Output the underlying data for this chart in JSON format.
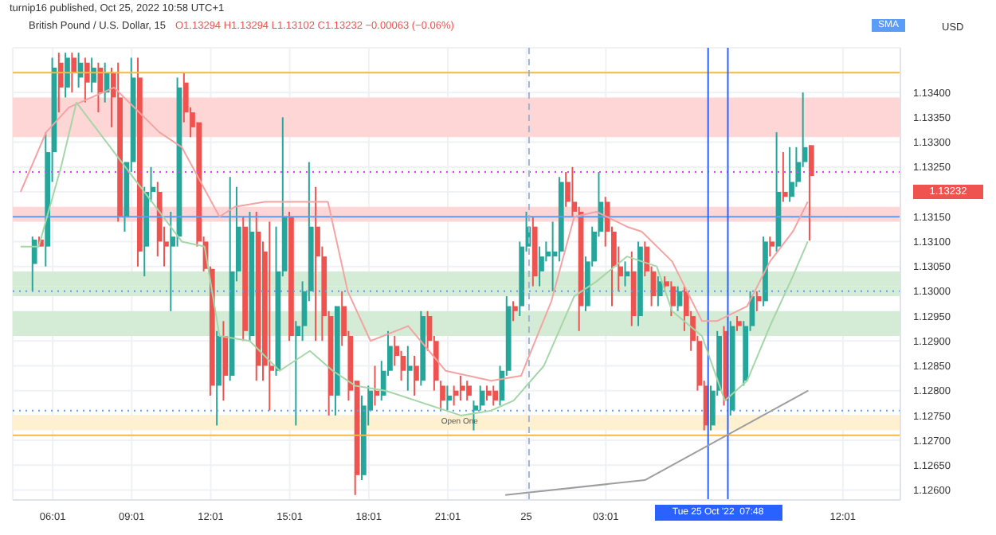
{
  "chart_data": {
    "type": "candlestick",
    "title": "British Pound / U.S. Dollar, 15",
    "subtitle": "O1.13294 H1.13294 L1.13102 C1.13232 −0.00063 (−0.06%)",
    "ylabel": "USD",
    "annotations": [
      "turnip16 published, Oct 25, 2022 10:58 UTC+1",
      "Tue 25 Oct '22  07:48",
      "Open One",
      "SMA",
      "1.13232"
    ],
    "x": [
      "2022-10-24T05:15",
      "2022-10-24T05:30",
      "2022-10-24T05:45",
      "2022-10-24T06:00",
      "2022-10-24T06:15",
      "2022-10-24T06:30",
      "2022-10-24T06:45",
      "2022-10-24T07:00",
      "2022-10-24T07:15",
      "2022-10-24T07:30",
      "2022-10-24T07:45",
      "2022-10-24T08:00",
      "2022-10-24T08:15",
      "2022-10-24T08:30",
      "2022-10-24T08:45",
      "2022-10-24T09:00",
      "2022-10-24T09:15",
      "2022-10-24T09:30",
      "2022-10-24T09:45",
      "2022-10-24T10:00",
      "2022-10-24T10:15",
      "2022-10-24T10:30",
      "2022-10-24T10:45",
      "2022-10-24T11:00",
      "2022-10-24T11:15",
      "2022-10-24T11:30",
      "2022-10-24T11:45",
      "2022-10-24T12:00",
      "2022-10-24T12:15",
      "2022-10-24T12:30",
      "2022-10-24T12:45",
      "2022-10-24T13:00",
      "2022-10-24T13:15",
      "2022-10-24T13:30",
      "2022-10-24T13:45",
      "2022-10-24T14:00",
      "2022-10-24T14:15",
      "2022-10-24T14:30",
      "2022-10-24T14:45",
      "2022-10-24T15:00",
      "2022-10-24T15:15",
      "2022-10-24T15:30",
      "2022-10-24T15:45",
      "2022-10-24T16:00",
      "2022-10-24T16:15",
      "2022-10-24T16:30",
      "2022-10-24T16:45",
      "2022-10-24T17:00",
      "2022-10-24T17:15",
      "2022-10-24T17:30",
      "2022-10-24T17:45",
      "2022-10-24T18:00",
      "2022-10-24T18:15",
      "2022-10-24T18:30",
      "2022-10-24T18:45",
      "2022-10-24T19:00",
      "2022-10-24T19:15",
      "2022-10-24T19:30",
      "2022-10-24T19:45",
      "2022-10-24T20:00",
      "2022-10-24T20:15",
      "2022-10-24T20:30",
      "2022-10-24T20:45",
      "2022-10-24T21:00",
      "2022-10-24T21:15",
      "2022-10-24T21:30",
      "2022-10-24T21:45",
      "2022-10-24T22:00",
      "2022-10-24T22:15",
      "2022-10-24T22:30",
      "2022-10-24T22:45",
      "2022-10-24T23:00",
      "2022-10-24T23:15",
      "2022-10-24T23:30",
      "2022-10-24T23:45",
      "2022-10-25T00:00",
      "2022-10-25T00:15",
      "2022-10-25T00:30",
      "2022-10-25T00:45",
      "2022-10-25T01:00",
      "2022-10-25T01:15",
      "2022-10-25T01:30",
      "2022-10-25T01:45",
      "2022-10-25T02:00",
      "2022-10-25T02:15",
      "2022-10-25T02:30",
      "2022-10-25T02:45",
      "2022-10-25T03:00",
      "2022-10-25T03:15",
      "2022-10-25T03:30",
      "2022-10-25T03:45",
      "2022-10-25T04:00",
      "2022-10-25T04:15",
      "2022-10-25T04:30",
      "2022-10-25T04:45",
      "2022-10-25T05:00",
      "2022-10-25T05:15",
      "2022-10-25T05:30",
      "2022-10-25T05:45",
      "2022-10-25T06:00",
      "2022-10-25T06:15",
      "2022-10-25T06:30",
      "2022-10-25T06:45",
      "2022-10-25T07:00",
      "2022-10-25T07:15",
      "2022-10-25T07:30",
      "2022-10-25T07:45",
      "2022-10-25T08:00",
      "2022-10-25T08:15",
      "2022-10-25T08:30",
      "2022-10-25T08:45",
      "2022-10-25T09:00",
      "2022-10-25T09:15",
      "2022-10-25T09:30",
      "2022-10-25T09:45",
      "2022-10-25T10:00",
      "2022-10-25T10:15",
      "2022-10-25T10:30",
      "2022-10-25T10:45"
    ],
    "ohlc": [
      [
        1.13055,
        1.1311,
        1.13,
        1.13104
      ],
      [
        1.13104,
        1.1311,
        1.1309,
        1.1309
      ],
      [
        1.1309,
        1.1332,
        1.1305,
        1.1328
      ],
      [
        1.1328,
        1.1347,
        1.1322,
        1.1345
      ],
      [
        1.1346,
        1.1348,
        1.1336,
        1.1341
      ],
      [
        1.1341,
        1.1348,
        1.1339,
        1.1347
      ],
      [
        1.1347,
        1.1348,
        1.134,
        1.1344
      ],
      [
        1.1343,
        1.1348,
        1.1341,
        1.1346
      ],
      [
        1.1346,
        1.1347,
        1.1338,
        1.1342
      ],
      [
        1.1342,
        1.1347,
        1.134,
        1.1345
      ],
      [
        1.1345,
        1.1346,
        1.1336,
        1.134
      ],
      [
        1.134,
        1.1346,
        1.1338,
        1.1344
      ],
      [
        1.1344,
        1.1345,
        1.1333,
        1.1339
      ],
      [
        1.1339,
        1.1346,
        1.1314,
        1.1315
      ],
      [
        1.1315,
        1.1326,
        1.1312,
        1.1326
      ],
      [
        1.1326,
        1.1347,
        1.1324,
        1.1343
      ],
      [
        1.1343,
        1.1347,
        1.1305,
        1.1308
      ],
      [
        1.1309,
        1.1321,
        1.1303,
        1.132
      ],
      [
        1.132,
        1.1325,
        1.1318,
        1.1321
      ],
      [
        1.132,
        1.1322,
        1.1307,
        1.131
      ],
      [
        1.131,
        1.1313,
        1.1305,
        1.1309
      ],
      [
        1.1309,
        1.1316,
        1.1296,
        1.1311
      ],
      [
        1.1311,
        1.1343,
        1.1309,
        1.1341
      ],
      [
        1.1342,
        1.1344,
        1.1334,
        1.1336
      ],
      [
        1.1336,
        1.1337,
        1.1331,
        1.1333
      ],
      [
        1.1334,
        1.1334,
        1.1309,
        1.131
      ],
      [
        1.131,
        1.1311,
        1.1304,
        1.13045
      ],
      [
        1.13045,
        1.1305,
        1.1279,
        1.1281
      ],
      [
        1.1281,
        1.1292,
        1.1273,
        1.1291
      ],
      [
        1.1291,
        1.1294,
        1.1278,
        1.1283
      ],
      [
        1.1283,
        1.1323,
        1.1282,
        1.1304
      ],
      [
        1.1304,
        1.1321,
        1.1302,
        1.1313
      ],
      [
        1.1313,
        1.1315,
        1.129,
        1.1292
      ],
      [
        1.1291,
        1.1316,
        1.129,
        1.1312
      ],
      [
        1.1312,
        1.1316,
        1.1282,
        1.1285
      ],
      [
        1.1308,
        1.131,
        1.1282,
        1.1285
      ],
      [
        1.1285,
        1.1314,
        1.1276,
        1.1284
      ],
      [
        1.1284,
        1.1313,
        1.1283,
        1.1304
      ],
      [
        1.1304,
        1.1335,
        1.1303,
        1.1315
      ],
      [
        1.1315,
        1.1316,
        1.129,
        1.1291
      ],
      [
        1.1291,
        1.1294,
        1.1273,
        1.1293
      ],
      [
        1.1293,
        1.1302,
        1.129,
        1.13
      ],
      [
        1.13,
        1.1326,
        1.1298,
        1.1313
      ],
      [
        1.1313,
        1.1321,
        1.129,
        1.1307
      ],
      [
        1.1307,
        1.1309,
        1.129,
        1.1295
      ],
      [
        1.1295,
        1.1296,
        1.1275,
        1.1279
      ],
      [
        1.1279,
        1.1297,
        1.1275,
        1.1297
      ],
      [
        1.1297,
        1.13,
        1.1289,
        1.1291
      ],
      [
        1.1291,
        1.1292,
        1.1278,
        1.128
      ],
      [
        1.1282,
        1.1282,
        1.1259,
        1.1263
      ],
      [
        1.1263,
        1.1279,
        1.1262,
        1.1277
      ],
      [
        1.1276,
        1.1281,
        1.1273,
        1.128
      ],
      [
        1.128,
        1.1285,
        1.1277,
        1.1279
      ],
      [
        1.1279,
        1.1286,
        1.1278,
        1.1284
      ],
      [
        1.1284,
        1.1292,
        1.1283,
        1.1289
      ],
      [
        1.1289,
        1.1291,
        1.1285,
        1.1287
      ],
      [
        1.1287,
        1.1288,
        1.1282,
        1.1284
      ],
      [
        1.1284,
        1.1289,
        1.128,
        1.1285
      ],
      [
        1.1285,
        1.1287,
        1.1279,
        1.1282
      ],
      [
        1.1282,
        1.1296,
        1.1281,
        1.1295
      ],
      [
        1.1295,
        1.1296,
        1.1288,
        1.129
      ],
      [
        1.129,
        1.1291,
        1.128,
        1.1282
      ],
      [
        1.1281,
        1.1282,
        1.1276,
        1.1278
      ],
      [
        1.1278,
        1.1281,
        1.1276,
        1.1279
      ],
      [
        1.128,
        1.1281,
        1.1277,
        1.1279
      ],
      [
        1.1281,
        1.1283,
        1.1278,
        1.128
      ],
      [
        1.1281,
        1.1282,
        1.1278,
        1.1279
      ],
      [
        1.1276,
        1.1278,
        1.1272,
        1.1277
      ],
      [
        1.1277,
        1.1281,
        1.1276,
        1.128
      ],
      [
        1.128,
        1.1281,
        1.1278,
        1.1279
      ],
      [
        1.128,
        1.1281,
        1.1277,
        1.1278
      ],
      [
        1.1278,
        1.1285,
        1.1277,
        1.1284
      ],
      [
        1.1284,
        1.1299,
        1.1283,
        1.1297
      ],
      [
        1.1297,
        1.1298,
        1.1294,
        1.1296
      ],
      [
        1.1297,
        1.131,
        1.1295,
        1.1309
      ],
      [
        1.1309,
        1.1316,
        1.1308,
        1.1313
      ],
      [
        1.1313,
        1.1315,
        1.1301,
        1.1303
      ],
      [
        1.1304,
        1.1309,
        1.1301,
        1.1307
      ],
      [
        1.1307,
        1.131,
        1.1306,
        1.1308
      ],
      [
        1.1307,
        1.1314,
        1.13,
        1.1308
      ],
      [
        1.1308,
        1.1323,
        1.1306,
        1.1322
      ],
      [
        1.1322,
        1.1324,
        1.1317,
        1.1318
      ],
      [
        1.1318,
        1.1325,
        1.1315,
        1.1316
      ],
      [
        1.1316,
        1.1317,
        1.1292,
        1.1297
      ],
      [
        1.1297,
        1.1307,
        1.1296,
        1.1306
      ],
      [
        1.1306,
        1.1313,
        1.1305,
        1.1312
      ],
      [
        1.1312,
        1.1324,
        1.1311,
        1.1318
      ],
      [
        1.1318,
        1.1319,
        1.1309,
        1.1312
      ],
      [
        1.1312,
        1.1313,
        1.1297,
        1.1305
      ],
      [
        1.1305,
        1.1309,
        1.13,
        1.1303
      ],
      [
        1.1303,
        1.1306,
        1.1301,
        1.1304
      ],
      [
        1.1304,
        1.1308,
        1.1293,
        1.1295
      ],
      [
        1.1295,
        1.131,
        1.1293,
        1.1309
      ],
      [
        1.1309,
        1.131,
        1.1303,
        1.1304
      ],
      [
        1.1304,
        1.1305,
        1.1297,
        1.1299
      ],
      [
        1.1299,
        1.1303,
        1.1297,
        1.1302
      ],
      [
        1.1302,
        1.1303,
        1.13,
        1.1301
      ],
      [
        1.1301,
        1.1302,
        1.1295,
        1.1297
      ],
      [
        1.1297,
        1.1301,
        1.1296,
        1.13
      ],
      [
        1.13,
        1.1301,
        1.1292,
        1.1295
      ],
      [
        1.1295,
        1.1296,
        1.1288,
        1.129
      ],
      [
        1.129,
        1.1291,
        1.128,
        1.1281
      ],
      [
        1.1281,
        1.1282,
        1.1272,
        1.1273
      ],
      [
        1.1273,
        1.1281,
        1.1272,
        1.128
      ],
      [
        1.128,
        1.1292,
        1.1279,
        1.1291
      ],
      [
        1.1292,
        1.1293,
        1.1277,
        1.1278
      ],
      [
        1.1276,
        1.1294,
        1.1275,
        1.1293
      ],
      [
        1.1294,
        1.1295,
        1.1292,
        1.1293
      ],
      [
        1.1282,
        1.1294,
        1.1281,
        1.1293
      ],
      [
        1.1293,
        1.13,
        1.1292,
        1.1299
      ],
      [
        1.1299,
        1.13,
        1.1296,
        1.1298
      ],
      [
        1.1298,
        1.1311,
        1.1297,
        1.131
      ],
      [
        1.131,
        1.1311,
        1.1307,
        1.1309
      ],
      [
        1.1309,
        1.1332,
        1.1308,
        1.132
      ],
      [
        1.132,
        1.1328,
        1.1318,
        1.1319
      ],
      [
        1.1319,
        1.1329,
        1.1318,
        1.1322
      ],
      [
        1.1322,
        1.1329,
        1.1321,
        1.1326
      ],
      [
        1.1326,
        1.134,
        1.1325,
        1.1329
      ],
      [
        1.13294,
        1.13294,
        1.13102,
        1.13232
      ]
    ],
    "series": [
      {
        "type": "line",
        "color": "#f4a3a3",
        "x": [
          "2022-10-24T04:48",
          "2022-10-24T05:46",
          "2022-10-24T06:38",
          "2022-10-24T08:21",
          "2022-10-24T10:04",
          "2022-10-24T10:55",
          "2022-10-24T12:21",
          "2022-10-24T12:56",
          "2022-10-24T14:04",
          "2022-10-24T15:13",
          "2022-10-24T16:04",
          "2022-10-24T16:28",
          "2022-10-24T17:13",
          "2022-10-24T18:05",
          "2022-10-24T19:31",
          "2022-10-24T20:56",
          "2022-10-24T22:40",
          "2022-10-24T23:48",
          "2022-10-25T00:57",
          "2022-10-25T01:49",
          "2022-10-25T02:40",
          "2022-10-25T03:49",
          "2022-10-25T04:23",
          "2022-10-25T05:32",
          "2022-10-25T06:40",
          "2022-10-25T07:14",
          "2022-10-25T08:23",
          "2022-10-25T09:15",
          "2022-10-25T10:07",
          "2022-10-25T10:41"
        ],
        "values": [
          1.132,
          1.1332,
          1.1337,
          1.1341,
          1.1332,
          1.1329,
          1.1315,
          1.1317,
          1.1318,
          1.1318,
          1.1318,
          1.1318,
          1.13,
          1.129,
          1.1293,
          1.1284,
          1.1282,
          1.1283,
          1.1298,
          1.1315,
          1.1316,
          1.1313,
          1.1312,
          1.1306,
          1.1294,
          1.1294,
          1.1297,
          1.1306,
          1.1312,
          1.1318
        ]
      },
      {
        "type": "line",
        "color": "#a5d6a7",
        "x": [
          "2022-10-24T04:48",
          "2022-10-24T05:29",
          "2022-10-24T06:20",
          "2022-10-24T06:55",
          "2022-10-24T08:38",
          "2022-10-24T10:04",
          "2022-10-24T10:55",
          "2022-10-24T11:47",
          "2022-10-24T12:21",
          "2022-10-24T13:30",
          "2022-10-24T14:38",
          "2022-10-24T15:47",
          "2022-10-24T16:39",
          "2022-10-24T17:30",
          "2022-10-24T18:39",
          "2022-10-24T19:48",
          "2022-10-24T21:31",
          "2022-10-24T22:40",
          "2022-10-24T23:31",
          "2022-10-25T00:40",
          "2022-10-25T01:49",
          "2022-10-25T02:40",
          "2022-10-25T03:49",
          "2022-10-25T04:57",
          "2022-10-25T05:32",
          "2022-10-25T06:40",
          "2022-10-25T07:32",
          "2022-10-25T08:23",
          "2022-10-25T09:15",
          "2022-10-25T10:07",
          "2022-10-25T10:41"
        ],
        "values": [
          1.1309,
          1.1309,
          1.1325,
          1.1338,
          1.1326,
          1.1316,
          1.131,
          1.1309,
          1.1291,
          1.129,
          1.1284,
          1.1288,
          1.1284,
          1.1281,
          1.128,
          1.1278,
          1.1275,
          1.1276,
          1.1278,
          1.1285,
          1.1299,
          1.1302,
          1.1307,
          1.1305,
          1.1296,
          1.1291,
          1.1278,
          1.1282,
          1.1293,
          1.1303,
          1.131
        ]
      },
      {
        "type": "line",
        "color": "#9e9e9e",
        "x": [
          "2022-10-24T23:12",
          "2022-10-25T04:30",
          "2022-10-25T10:42"
        ],
        "values": [
          1.1259,
          1.1262,
          1.128
        ]
      }
    ],
    "xlim": [
      "2022-10-24T04:30",
      "2022-10-25T14:12"
    ],
    "xticks": [
      {
        "value": "2022-10-24T06:01",
        "label": "06:01"
      },
      {
        "value": "2022-10-24T09:01",
        "label": "09:01"
      },
      {
        "value": "2022-10-24T12:01",
        "label": "12:01"
      },
      {
        "value": "2022-10-24T15:01",
        "label": "15:01"
      },
      {
        "value": "2022-10-24T18:01",
        "label": "18:01"
      },
      {
        "value": "2022-10-24T21:01",
        "label": "21:01"
      },
      {
        "value": "2022-10-25T00:00",
        "label": "25"
      },
      {
        "value": "2022-10-25T03:01",
        "label": "03:01"
      },
      {
        "value": "2022-10-25T12:01",
        "label": "12:01"
      }
    ],
    "ylim": [
      1.1258,
      1.1349
    ],
    "yticks": [
      {
        "value": 1.126,
        "label": "1.12600"
      },
      {
        "value": 1.1265,
        "label": "1.12650"
      },
      {
        "value": 1.127,
        "label": "1.12700"
      },
      {
        "value": 1.1275,
        "label": "1.12750"
      },
      {
        "value": 1.128,
        "label": "1.12800"
      },
      {
        "value": 1.1285,
        "label": "1.12850"
      },
      {
        "value": 1.129,
        "label": "1.12900"
      },
      {
        "value": 1.1295,
        "label": "1.12950"
      },
      {
        "value": 1.13,
        "label": "1.13000"
      },
      {
        "value": 1.1305,
        "label": "1.13050"
      },
      {
        "value": 1.131,
        "label": "1.13100"
      },
      {
        "value": 1.1315,
        "label": "1.13150"
      },
      {
        "value": 1.132,
        "label": null
      },
      {
        "value": 1.1325,
        "label": "1.13250"
      },
      {
        "value": 1.133,
        "label": "1.13300"
      },
      {
        "value": 1.1335,
        "label": "1.13350"
      },
      {
        "value": 1.134,
        "label": "1.13400"
      }
    ],
    "grid": true,
    "bands": [
      {
        "axis": "y",
        "from": 1.1331,
        "to": 1.1339,
        "color": "#ffd6d6"
      },
      {
        "axis": "y",
        "from": 1.1314,
        "to": 1.1317,
        "color": "#ffd6d6"
      },
      {
        "axis": "y",
        "from": 1.1301,
        "to": 1.1304,
        "color": "#d4ecd5"
      },
      {
        "axis": "y",
        "from": 1.1299,
        "to": 1.1301,
        "color": "#d4ecd5"
      },
      {
        "axis": "y",
        "from": 1.1291,
        "to": 1.1296,
        "color": "#d4ecd5"
      },
      {
        "axis": "y",
        "from": 1.1272,
        "to": 1.1275,
        "color": "#fff0d0"
      }
    ],
    "ref_lines": [
      {
        "axis": "y",
        "value": 1.1344,
        "color": "#f5b942",
        "line_style": "solid"
      },
      {
        "axis": "y",
        "value": 1.1324,
        "color": "#e040fb",
        "line_style": "dotted"
      },
      {
        "axis": "y",
        "value": 1.1315,
        "color": "#5b9cf6",
        "line_style": "solid"
      },
      {
        "axis": "y",
        "value": 1.13,
        "color": "#5b9cf6",
        "line_style": "dotted"
      },
      {
        "axis": "y",
        "value": 1.1276,
        "color": "#5b9cf6",
        "line_style": "dotted"
      },
      {
        "axis": "y",
        "value": 1.1271,
        "color": "#f5b942",
        "line_style": "solid"
      },
      {
        "axis": "x",
        "value": "2022-10-25T00:06",
        "color": "#9fb3d6",
        "line_style": "dashed"
      },
      {
        "axis": "x",
        "value": "2022-10-25T06:54",
        "color": "#2962ff",
        "line_style": "solid"
      },
      {
        "axis": "x",
        "value": "2022-10-25T07:39",
        "color": "#2962ff",
        "line_style": "solid"
      }
    ]
  }
}
